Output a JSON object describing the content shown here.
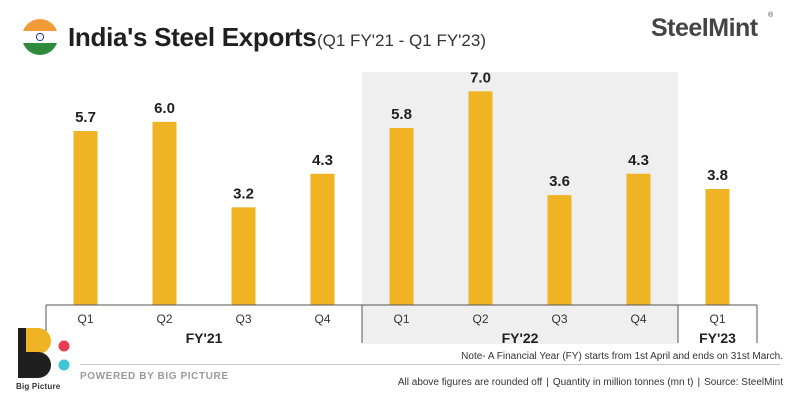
{
  "header": {
    "title": "India's Steel Exports",
    "subtitle": "(Q1 FY'21 - Q1 FY'23)",
    "brand": "SteelMint",
    "brand_reg": "®",
    "flag_colors": {
      "saffron": "#F29A38",
      "white": "#FFFFFF",
      "green": "#2E8B3E",
      "chakra": "#1A3A8F"
    }
  },
  "colors": {
    "bar": "#F0B323",
    "highlight_band": "#EFEFEF",
    "axis": "#555555"
  },
  "chart_data": {
    "type": "bar",
    "categories": [
      "Q1",
      "Q2",
      "Q3",
      "Q4",
      "Q1",
      "Q2",
      "Q3",
      "Q4",
      "Q1"
    ],
    "groups": [
      {
        "label": "FY'21",
        "start": 0,
        "end": 3
      },
      {
        "label": "FY'22",
        "start": 4,
        "end": 7
      },
      {
        "label": "FY'23",
        "start": 8,
        "end": 8
      }
    ],
    "values": [
      5.7,
      6.0,
      3.2,
      4.3,
      5.8,
      7.0,
      3.6,
      4.3,
      3.8
    ],
    "data_labels": [
      "5.7",
      "6.0",
      "3.2",
      "4.3",
      "5.8",
      "7.0",
      "3.6",
      "4.3",
      "3.8"
    ],
    "highlighted_group": "FY'22",
    "ylim": [
      0,
      7.7
    ],
    "grid": false,
    "title": "India's Steel Exports",
    "xlabel": "",
    "ylabel": ""
  },
  "footer": {
    "logo_text": "Big Picture",
    "powered_by": "POWERED BY BIG PICTURE",
    "note": "Note- A Financial Year (FY) starts from 1st April and ends on 31st March.",
    "footnote_parts": [
      "All above figures are rounded off",
      "Quantity in million tonnes (mn t)",
      "Source: SteelMint"
    ],
    "separator": "|"
  }
}
